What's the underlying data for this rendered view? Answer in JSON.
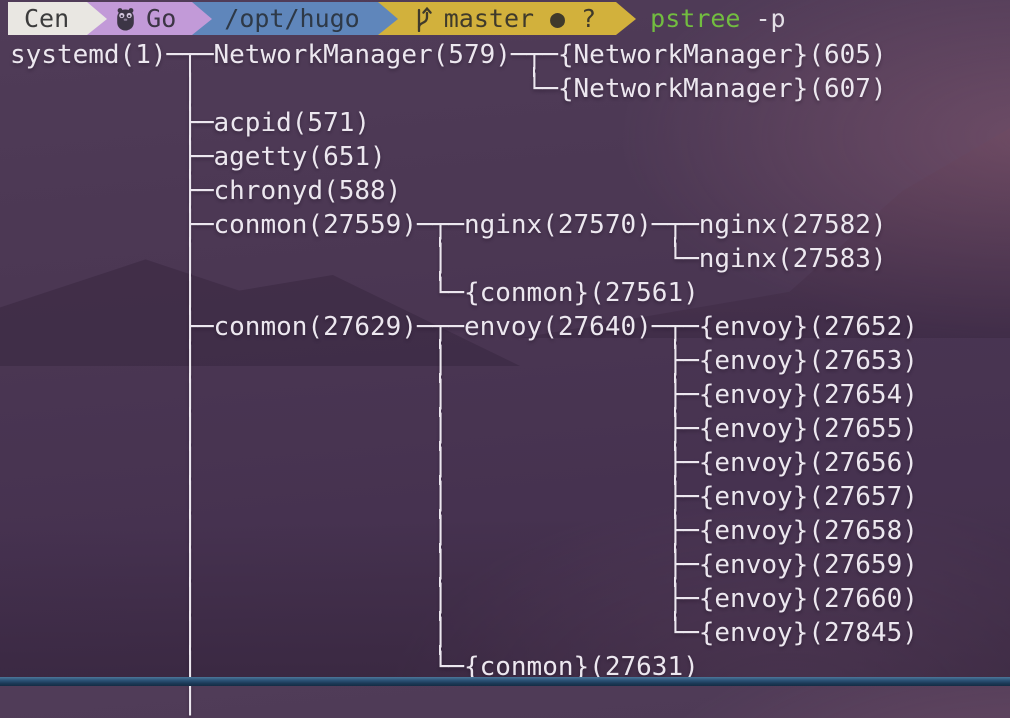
{
  "terminal": {
    "prompt": {
      "os_label": "Cen",
      "lang_label": "Go",
      "path_label": "/opt/hugo",
      "git_branch": "master",
      "git_dirty_dot": "●",
      "git_untracked": "?",
      "command": "pstree",
      "command_args": "-p"
    },
    "pstree": {
      "root_process": "systemd(1)",
      "lines": [
        "systemd(1)─┬─NetworkManager(579)─┬─{NetworkManager}(605)",
        "           │                     └─{NetworkManager}(607)",
        "           ├─acpid(571)",
        "           ├─agetty(651)",
        "           ├─chronyd(588)",
        "           ├─conmon(27559)─┬─nginx(27570)─┬─nginx(27582)",
        "           │               │              └─nginx(27583)",
        "           │               └─{conmon}(27561)",
        "           ├─conmon(27629)─┬─envoy(27640)─┬─{envoy}(27652)",
        "           │               │              ├─{envoy}(27653)",
        "           │               │              ├─{envoy}(27654)",
        "           │               │              ├─{envoy}(27655)",
        "           │               │              ├─{envoy}(27656)",
        "           │               │              ├─{envoy}(27657)",
        "           │               │              ├─{envoy}(27658)",
        "           │               │              ├─{envoy}(27659)",
        "           │               │              ├─{envoy}(27660)",
        "           │               │              └─{envoy}(27845)",
        "           │               └─{conmon}(27631)",
        "           │"
      ]
    }
  },
  "colors": {
    "term_fg": "#ece7ef",
    "cmd_green": "#72bd40",
    "seg_os_bg": "#e9e7e2",
    "seg_os_fg": "#3c3c3c",
    "seg_lang_bg": "#c29ad8",
    "seg_lang_fg": "#3c3545",
    "seg_path_bg": "#5f86bb",
    "seg_path_fg": "#2e3947",
    "seg_git_bg": "#d2b13c",
    "seg_git_fg": "#3f3a2b"
  }
}
